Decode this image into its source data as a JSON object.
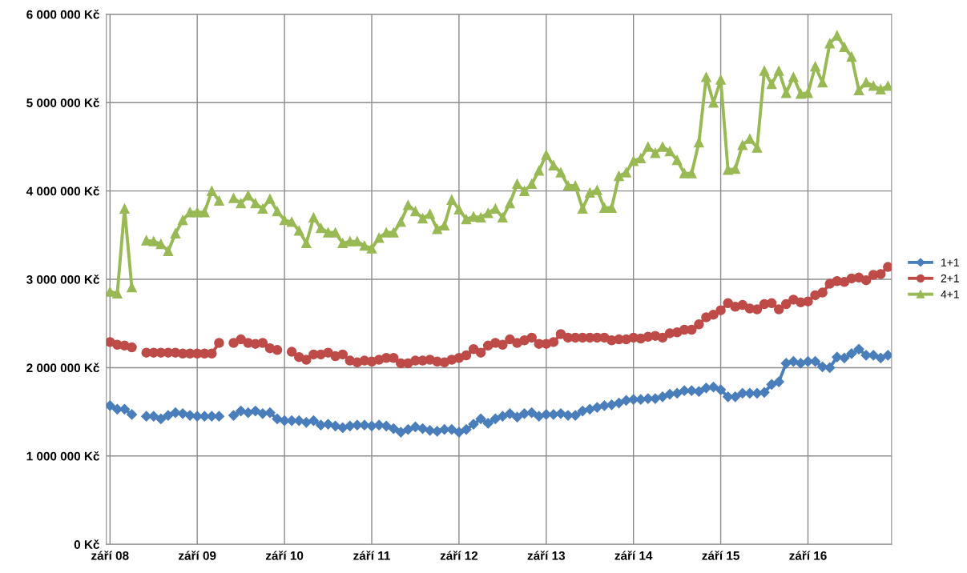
{
  "chart_data": {
    "type": "line",
    "categories": [
      "září 08",
      null,
      null,
      null,
      null,
      null,
      null,
      null,
      null,
      null,
      null,
      null,
      "září 09",
      null,
      null,
      null,
      null,
      null,
      null,
      null,
      null,
      null,
      null,
      null,
      "září 10",
      null,
      null,
      null,
      null,
      null,
      null,
      null,
      null,
      null,
      null,
      null,
      "září 11",
      null,
      null,
      null,
      null,
      null,
      null,
      null,
      null,
      null,
      null,
      null,
      "září 12",
      null,
      null,
      null,
      null,
      null,
      null,
      null,
      null,
      null,
      null,
      null,
      "září 13",
      null,
      null,
      null,
      null,
      null,
      null,
      null,
      null,
      null,
      null,
      null,
      "září 14",
      null,
      null,
      null,
      null,
      null,
      null,
      null,
      null,
      null,
      null,
      null,
      "září 15",
      null,
      null,
      null,
      null,
      null,
      null,
      null,
      null,
      null,
      null,
      null,
      "září 16",
      null,
      null,
      null,
      null,
      null,
      null,
      null,
      null,
      null,
      null,
      null
    ],
    "series": [
      {
        "name": "1+1",
        "color": "#4a7ebb",
        "marker": "diamond",
        "values": [
          1570000,
          1530000,
          1530000,
          1470000,
          null,
          1450000,
          1450000,
          1420000,
          1460000,
          1490000,
          1480000,
          1460000,
          1450000,
          1450000,
          1450000,
          1450000,
          null,
          1460000,
          1510000,
          1490000,
          1510000,
          1480000,
          1490000,
          1420000,
          1400000,
          1400000,
          1400000,
          1380000,
          1400000,
          1350000,
          1360000,
          1340000,
          1320000,
          1340000,
          1350000,
          1350000,
          1340000,
          1350000,
          1340000,
          1310000,
          1270000,
          1300000,
          1330000,
          1310000,
          1290000,
          1280000,
          1300000,
          1300000,
          1270000,
          1300000,
          1360000,
          1420000,
          1370000,
          1420000,
          1450000,
          1480000,
          1440000,
          1480000,
          1490000,
          1450000,
          1470000,
          1470000,
          1480000,
          1460000,
          1460000,
          1510000,
          1530000,
          1550000,
          1570000,
          1580000,
          1600000,
          1630000,
          1640000,
          1640000,
          1650000,
          1650000,
          1670000,
          1700000,
          1710000,
          1740000,
          1740000,
          1730000,
          1770000,
          1780000,
          1750000,
          1670000,
          1670000,
          1710000,
          1710000,
          1710000,
          1720000,
          1810000,
          1840000,
          2050000,
          2070000,
          2050000,
          2070000,
          2070000,
          2010000,
          2000000,
          2120000,
          2110000,
          2160000,
          2210000,
          2140000,
          2140000,
          2110000,
          2140000
        ]
      },
      {
        "name": "2+1",
        "color": "#be4b48",
        "marker": "circle",
        "values": [
          2290000,
          2260000,
          2250000,
          2230000,
          null,
          2170000,
          2170000,
          2170000,
          2170000,
          2170000,
          2160000,
          2160000,
          2160000,
          2160000,
          2160000,
          2280000,
          null,
          2280000,
          2320000,
          2280000,
          2270000,
          2280000,
          2220000,
          2200000,
          null,
          2180000,
          2120000,
          2090000,
          2150000,
          2150000,
          2170000,
          2130000,
          2150000,
          2080000,
          2060000,
          2080000,
          2070000,
          2090000,
          2110000,
          2110000,
          2050000,
          2050000,
          2080000,
          2080000,
          2090000,
          2070000,
          2060000,
          2090000,
          2110000,
          2140000,
          2210000,
          2170000,
          2250000,
          2280000,
          2260000,
          2320000,
          2280000,
          2310000,
          2340000,
          2270000,
          2270000,
          2290000,
          2380000,
          2340000,
          2340000,
          2340000,
          2340000,
          2340000,
          2340000,
          2310000,
          2320000,
          2320000,
          2340000,
          2330000,
          2350000,
          2360000,
          2340000,
          2390000,
          2400000,
          2430000,
          2430000,
          2490000,
          2570000,
          2600000,
          2650000,
          2730000,
          2690000,
          2710000,
          2670000,
          2660000,
          2720000,
          2730000,
          2660000,
          2720000,
          2770000,
          2740000,
          2750000,
          2820000,
          2850000,
          2950000,
          2980000,
          2970000,
          3010000,
          3020000,
          2990000,
          3050000,
          3060000,
          3140000
        ]
      },
      {
        "name": "4+1",
        "color": "#98b954",
        "marker": "triangle",
        "values": [
          2860000,
          2840000,
          3800000,
          2910000,
          null,
          3440000,
          3430000,
          3400000,
          3320000,
          3520000,
          3670000,
          3760000,
          3760000,
          3760000,
          4000000,
          3890000,
          null,
          3920000,
          3860000,
          3950000,
          3860000,
          3800000,
          3910000,
          3770000,
          3670000,
          3650000,
          3550000,
          3410000,
          3700000,
          3580000,
          3530000,
          3530000,
          3410000,
          3430000,
          3430000,
          3380000,
          3350000,
          3470000,
          3530000,
          3530000,
          3650000,
          3840000,
          3770000,
          3690000,
          3740000,
          3570000,
          3610000,
          3900000,
          3790000,
          3680000,
          3710000,
          3700000,
          3750000,
          3800000,
          3700000,
          3860000,
          4080000,
          4000000,
          4080000,
          4230000,
          4410000,
          4290000,
          4210000,
          4060000,
          4060000,
          3800000,
          3980000,
          4010000,
          3810000,
          3810000,
          4170000,
          4210000,
          4340000,
          4370000,
          4500000,
          4430000,
          4500000,
          4450000,
          4350000,
          4200000,
          4200000,
          4550000,
          5290000,
          5000000,
          5260000,
          4240000,
          4250000,
          4520000,
          4590000,
          4490000,
          5360000,
          5210000,
          5360000,
          5110000,
          5290000,
          5100000,
          5110000,
          5410000,
          5230000,
          5670000,
          5760000,
          5630000,
          5520000,
          5140000,
          5230000,
          5190000,
          5150000,
          5190000
        ]
      }
    ],
    "ylim": [
      0,
      6000000
    ],
    "yticks": [
      {
        "value": 0,
        "label": "0 Kč"
      },
      {
        "value": 1000000,
        "label": "1 000 000 Kč"
      },
      {
        "value": 2000000,
        "label": "2 000 000 Kč"
      },
      {
        "value": 3000000,
        "label": "3 000 000 Kč"
      },
      {
        "value": 4000000,
        "label": "4 000 000 Kč"
      },
      {
        "value": 5000000,
        "label": "5 000 000 Kč"
      },
      {
        "value": 6000000,
        "label": "6 000 000 Kč"
      }
    ],
    "grid": true,
    "legend": "right",
    "line_style": "solid"
  }
}
